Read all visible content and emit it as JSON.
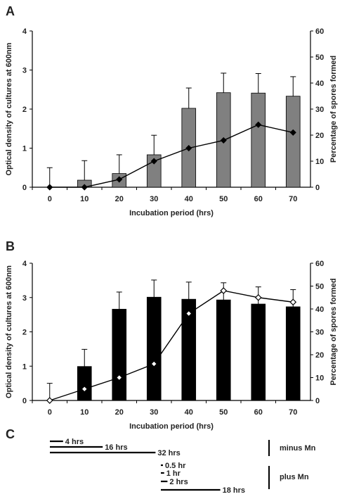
{
  "figure": {
    "panels": [
      "A",
      "B",
      "C"
    ]
  },
  "chart_data": [
    {
      "panel": "A",
      "type": "bar",
      "xlabel": "Incubation period (hrs)",
      "ylabel": "Optical density of cultures at 600nm",
      "y2label": "Percentage of spores formed",
      "categories": [
        "0",
        "10",
        "20",
        "30",
        "40",
        "50",
        "60",
        "70"
      ],
      "ylim": [
        0,
        4
      ],
      "y2lim": [
        0,
        60
      ],
      "yticks": [
        "0",
        "1",
        "2",
        "3",
        "4"
      ],
      "y2ticks": [
        "0",
        "10",
        "20",
        "30",
        "40",
        "50",
        "60"
      ],
      "bar_color": "#808080",
      "series": [
        {
          "kind": "bar",
          "axis": "left",
          "values": [
            0,
            0.18,
            0.35,
            0.83,
            2.02,
            2.42,
            2.41,
            2.33
          ],
          "error_upper": [
            0.5,
            0.5,
            0.48,
            0.5,
            0.52,
            0.5,
            0.5,
            0.5
          ]
        },
        {
          "kind": "line",
          "axis": "right",
          "marker": "filled-diamond",
          "values": [
            0,
            0,
            3,
            10,
            15,
            18,
            24,
            21
          ]
        }
      ]
    },
    {
      "panel": "B",
      "type": "bar",
      "xlabel": "Incubation period (hrs)",
      "ylabel": "Optical density of cultures at 600nm",
      "y2label": "Percentage of spores formed",
      "categories": [
        "0",
        "10",
        "20",
        "30",
        "40",
        "50",
        "60",
        "70"
      ],
      "ylim": [
        0,
        4
      ],
      "y2lim": [
        0,
        60
      ],
      "yticks": [
        "0",
        "1",
        "2",
        "3",
        "4"
      ],
      "y2ticks": [
        "0",
        "10",
        "20",
        "30",
        "40",
        "50",
        "60"
      ],
      "bar_color": "#000000",
      "series": [
        {
          "kind": "bar",
          "axis": "left",
          "values": [
            0,
            0.99,
            2.66,
            3.01,
            2.95,
            2.93,
            2.81,
            2.73
          ],
          "error_upper": [
            0.5,
            0.5,
            0.5,
            0.5,
            0.5,
            0.5,
            0.5,
            0.5
          ]
        },
        {
          "kind": "line",
          "axis": "right",
          "marker": "open-diamond",
          "values": [
            0,
            5,
            10,
            16,
            38,
            48,
            45,
            43
          ]
        }
      ]
    }
  ],
  "timeline": {
    "groups": [
      {
        "label": "minus Mn",
        "bars": [
          {
            "label": "4 hrs",
            "hours": 4
          },
          {
            "label": "16 hrs",
            "hours": 16
          },
          {
            "label": "32 hrs",
            "hours": 32
          }
        ]
      },
      {
        "label": "plus Mn",
        "bars": [
          {
            "label": "0.5 hr",
            "hours": 0.5
          },
          {
            "label": "1 hr",
            "hours": 1
          },
          {
            "label": "2 hrs",
            "hours": 2
          },
          {
            "label": "18 hrs",
            "hours": 18
          }
        ]
      }
    ]
  }
}
